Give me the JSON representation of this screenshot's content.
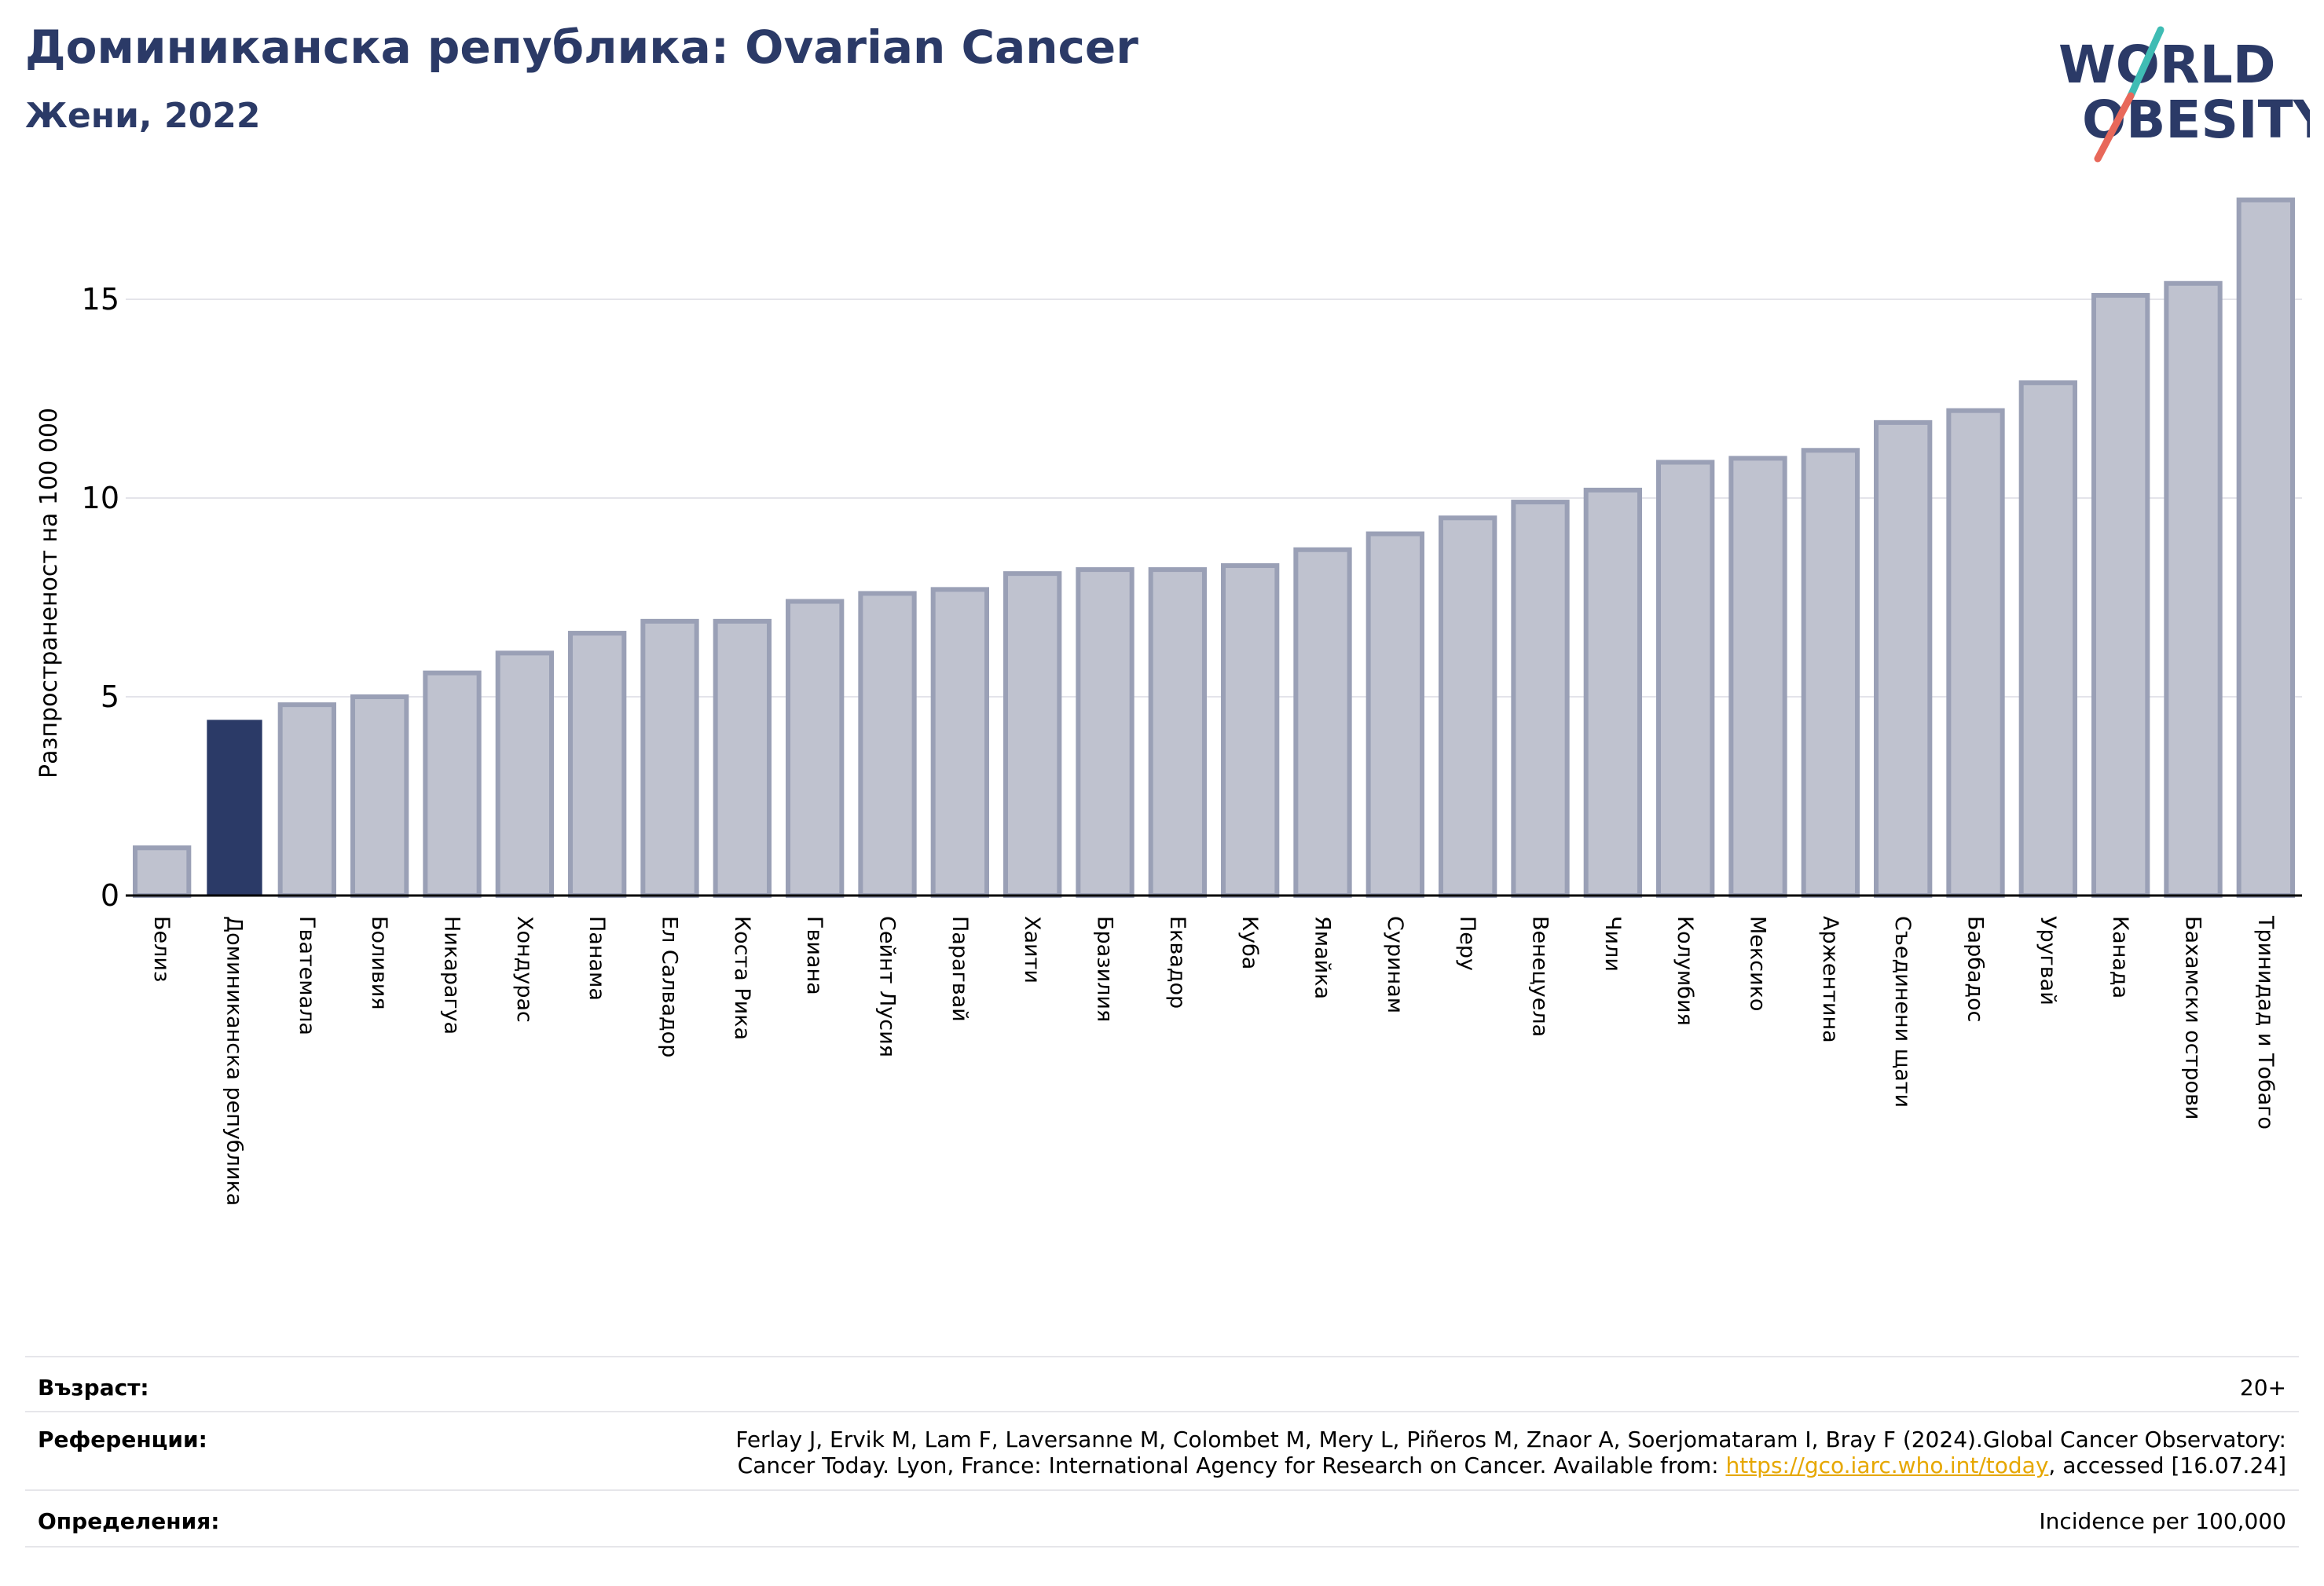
{
  "header": {
    "title": "Доминиканска република: Ovarian Cancer",
    "subtitle": "Жени, 2022"
  },
  "logo": {
    "line1": "WORLD",
    "line2": "OBESITY",
    "colors": {
      "text": "#2b3a67",
      "slash_teal": "#3fbcb4",
      "slash_red": "#e8685a"
    }
  },
  "chart_data": {
    "type": "bar",
    "ylabel": "Разпространеност  на 100 000",
    "ylim": [
      0,
      18
    ],
    "yticks": [
      0,
      5,
      10,
      15
    ],
    "grid": true,
    "highlight": "Доминиканска република",
    "colors": {
      "bar": "#bfc2cf",
      "bar_edge": "#9aa0b6",
      "highlight": "#2b3a67"
    },
    "categories": [
      "Белиз",
      "Доминиканска република",
      "Гватемала",
      "Боливия",
      "Никарагуа",
      "Хондурас",
      "Панама",
      "Ел Салвадор",
      "Коста Рика",
      "Гвиана",
      "Сейнт Лусия",
      "Парагвай",
      "Хаити",
      "Бразилия",
      "Еквадор",
      "Куба",
      "Ямайка",
      "Суринам",
      "Перу",
      "Венецуела",
      "Чили",
      "Колумбия",
      "Мексико",
      "Аржентина",
      "Съединени щати",
      "Барбадос",
      "Уругвай",
      "Канада",
      "Бахамски острови",
      "Тринидад и Тобаго"
    ],
    "values": [
      1.2,
      4.4,
      4.8,
      5.0,
      5.6,
      6.1,
      6.6,
      6.9,
      6.9,
      7.4,
      7.6,
      7.7,
      8.1,
      8.2,
      8.2,
      8.3,
      8.7,
      9.1,
      9.5,
      9.9,
      10.2,
      10.9,
      11.0,
      11.2,
      11.9,
      12.2,
      12.9,
      15.1,
      15.4,
      17.5
    ]
  },
  "info": {
    "age_label": "Възраст:",
    "age_value": "20+",
    "refs_label": "Референции:",
    "refs_line1": "Ferlay J, Ervik M, Lam F, Laversanne M, Colombet M, Mery L, Piñeros M, Znaor A, Soerjomataram I, Bray F (2024).Global Cancer Observatory:",
    "refs_line2_pre": "Cancer Today. Lyon, France: International Agency for Research on Cancer. Available from: ",
    "refs_link": "https://gco.iarc.who.int/today",
    "refs_line2_post": ", accessed [16.07.24]",
    "defs_label": "Определения:",
    "defs_value": "Incidence per 100,000"
  }
}
